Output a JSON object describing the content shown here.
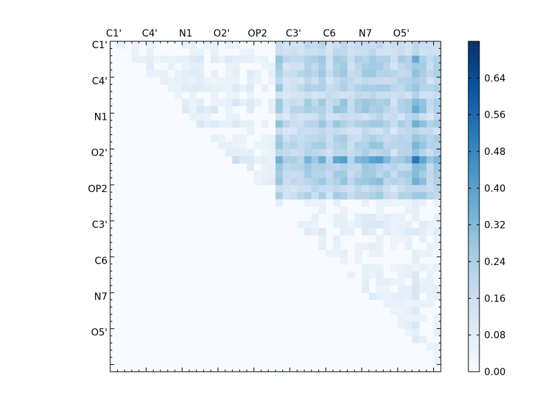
{
  "chart_data": {
    "type": "heatmap",
    "title": "",
    "xlabel": "",
    "ylabel": "",
    "colormap": "Blues",
    "x_tick_labels": [
      "C1'",
      "C4'",
      "N1",
      "O2'",
      "OP2",
      "C3'",
      "C6",
      "N7",
      "O5'"
    ],
    "y_tick_labels": [
      "C1'",
      "C4'",
      "N1",
      "O2'",
      "OP2",
      "C3'",
      "C6",
      "N7",
      "O5'"
    ],
    "colorbar": {
      "vmin": 0.0,
      "vmax": 0.72,
      "tick_labels": [
        "0.00",
        "0.08",
        "0.16",
        "0.24",
        "0.32",
        "0.40",
        "0.48",
        "0.56",
        "0.64"
      ],
      "tick_values": [
        0.0,
        0.08,
        0.16,
        0.24,
        0.32,
        0.4,
        0.48,
        0.56,
        0.64
      ]
    },
    "grid_size": 46,
    "lower_triangle_value": 0.0,
    "upper_triangle_typical_range": [
      0.0,
      0.72
    ],
    "notes_visible": false
  },
  "colors": {
    "background": "#ffffff",
    "axis": "#000000",
    "cmap_low": "#f7fbff",
    "cmap_high": "#08306b"
  }
}
